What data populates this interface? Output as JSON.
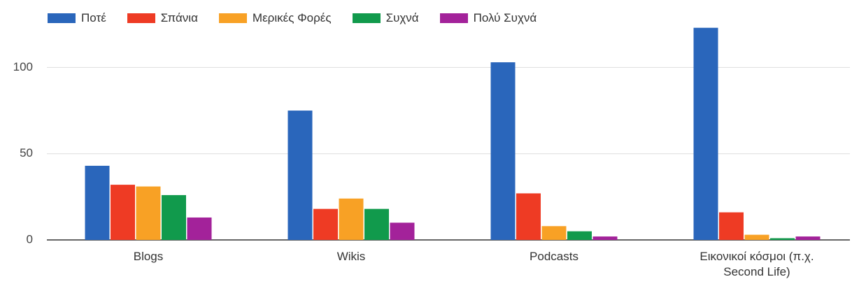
{
  "chart_data": {
    "type": "bar",
    "categories": [
      "Blogs",
      "Wikis",
      "Podcasts",
      "Εικονικοί κόσμοι (π.χ. Second Life)"
    ],
    "series": [
      {
        "name": "Ποτέ",
        "color": "#2a66bb",
        "values": [
          43,
          75,
          103,
          123
        ]
      },
      {
        "name": "Σπάνια",
        "color": "#ee3b24",
        "values": [
          32,
          18,
          27,
          16
        ]
      },
      {
        "name": "Μερικές Φορές",
        "color": "#f8a125",
        "values": [
          31,
          24,
          8,
          3
        ]
      },
      {
        "name": "Συχνά",
        "color": "#119a4c",
        "values": [
          26,
          18,
          5,
          1
        ]
      },
      {
        "name": "Πολύ Συχνά",
        "color": "#a3229a",
        "values": [
          13,
          10,
          2,
          2
        ]
      }
    ],
    "ylim": [
      0,
      131
    ],
    "yticks": [
      0,
      50,
      100
    ],
    "grid": true,
    "legend": "top"
  }
}
